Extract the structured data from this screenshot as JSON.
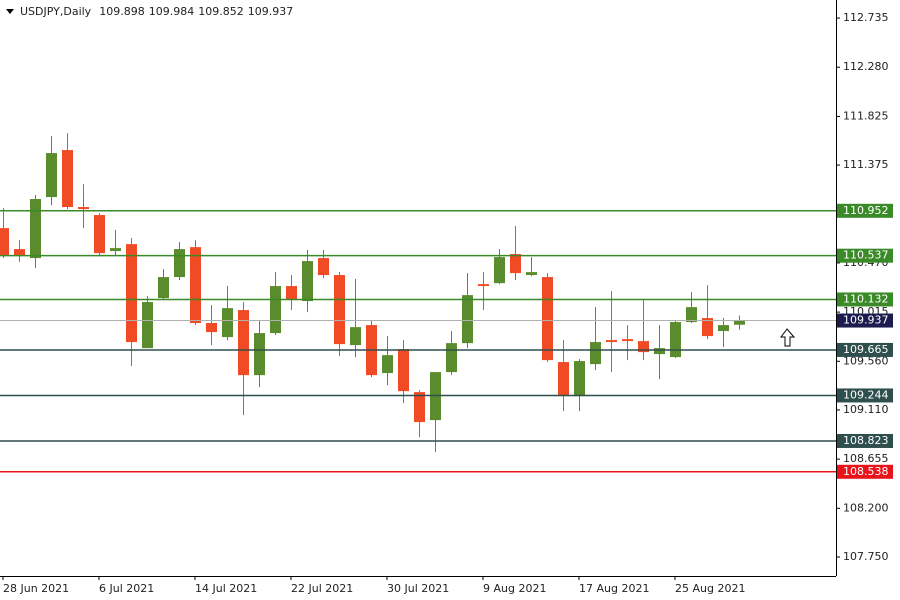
{
  "chart_data": {
    "type": "candlestick",
    "title": "USDJPY,Daily",
    "readout": [
      109.898,
      109.984,
      109.852,
      109.937
    ],
    "categories": [
      "28 Jun 2021",
      null,
      null,
      null,
      null,
      null,
      "6 Jul 2021",
      null,
      null,
      null,
      null,
      null,
      "14 Jul 2021",
      null,
      null,
      null,
      null,
      null,
      "22 Jul 2021",
      null,
      null,
      null,
      null,
      null,
      "30 Jul 2021",
      null,
      null,
      null,
      null,
      null,
      "9 Aug 2021",
      null,
      null,
      null,
      null,
      null,
      "17 Aug 2021",
      null,
      null,
      null,
      null,
      null,
      "25 Aug 2021",
      null,
      null,
      null,
      null
    ],
    "open": [
      110.792,
      110.598,
      110.515,
      111.079,
      111.514,
      110.987,
      110.913,
      110.58,
      110.644,
      109.682,
      110.145,
      110.339,
      110.616,
      109.914,
      109.784,
      110.034,
      109.432,
      109.821,
      110.256,
      110.117,
      110.515,
      110.358,
      109.71,
      109.895,
      109.451,
      109.673,
      109.275,
      109.016,
      109.46,
      109.728,
      110.274,
      110.283,
      110.552,
      110.358,
      110.339,
      109.553,
      109.238,
      109.534,
      109.756,
      109.765,
      109.747,
      109.627,
      109.599,
      109.923,
      109.96,
      109.84,
      109.898
    ],
    "high": [
      110.977,
      110.681,
      111.098,
      111.643,
      111.671,
      111.199,
      110.931,
      110.774,
      110.7,
      110.163,
      110.413,
      110.663,
      110.681,
      110.08,
      110.256,
      110.108,
      109.941,
      110.385,
      110.358,
      110.589,
      110.589,
      110.385,
      110.321,
      109.941,
      109.793,
      109.756,
      109.294,
      109.46,
      109.839,
      110.376,
      110.385,
      110.598,
      110.811,
      110.524,
      110.376,
      109.756,
      109.58,
      110.061,
      110.209,
      109.895,
      110.126,
      109.895,
      109.941,
      110.2,
      110.265,
      109.96,
      109.984
    ],
    "low": [
      110.515,
      110.478,
      110.422,
      111.005,
      110.968,
      110.792,
      110.533,
      110.543,
      109.516,
      109.682,
      110.126,
      110.311,
      109.895,
      109.71,
      109.756,
      109.062,
      109.321,
      109.802,
      110.034,
      110.015,
      110.33,
      109.608,
      109.599,
      109.414,
      109.34,
      109.173,
      108.859,
      108.72,
      109.432,
      109.682,
      110.034,
      110.274,
      110.311,
      110.348,
      109.553,
      109.099,
      109.099,
      109.479,
      109.46,
      109.571,
      109.571,
      109.395,
      109.59,
      109.914,
      109.765,
      109.691,
      109.852
    ],
    "close": [
      110.543,
      110.543,
      111.061,
      111.486,
      110.987,
      110.968,
      110.561,
      110.607,
      109.738,
      110.108,
      110.339,
      110.598,
      109.914,
      109.83,
      110.052,
      109.432,
      109.821,
      110.256,
      110.136,
      110.487,
      110.358,
      109.719,
      109.876,
      109.432,
      109.617,
      109.284,
      108.998,
      109.46,
      109.728,
      110.172,
      110.256,
      110.524,
      110.376,
      110.385,
      109.571,
      109.238,
      109.562,
      109.738,
      109.738,
      109.747,
      109.645,
      109.682,
      109.923,
      110.061,
      109.793,
      109.895,
      109.937
    ],
    "up_color": "#5a8b2d",
    "down_color": "#f04b25",
    "ylim": [
      107.574,
      112.902
    ],
    "yticks": [
      {
        "value": 112.735,
        "label": "112.735"
      },
      {
        "value": 112.28,
        "label": "112.280"
      },
      {
        "value": 111.825,
        "label": "111.825"
      },
      {
        "value": 111.375,
        "label": "111.375"
      },
      {
        "value": 110.47,
        "label": "110.470"
      },
      {
        "value": 110.015,
        "label": "110.015"
      },
      {
        "value": 109.56,
        "label": "109.560"
      },
      {
        "value": 109.11,
        "label": "109.110"
      },
      {
        "value": 108.655,
        "label": "108.655"
      },
      {
        "value": 108.2,
        "label": "108.200"
      },
      {
        "value": 107.75,
        "label": "107.750"
      }
    ],
    "levels": [
      {
        "value": 110.952,
        "color": "#3a8a28"
      },
      {
        "value": 110.537,
        "color": "#3a8a28"
      },
      {
        "value": 110.132,
        "color": "#3a8a28"
      },
      {
        "value": 109.665,
        "color": "#2f4f4f"
      },
      {
        "value": 109.244,
        "color": "#2f4f4f"
      },
      {
        "value": 108.823,
        "color": "#2f4f4f"
      },
      {
        "value": 108.538,
        "color": "#e8141a"
      }
    ],
    "current_price": {
      "value": 109.937,
      "color": "#1c1c4e"
    }
  }
}
